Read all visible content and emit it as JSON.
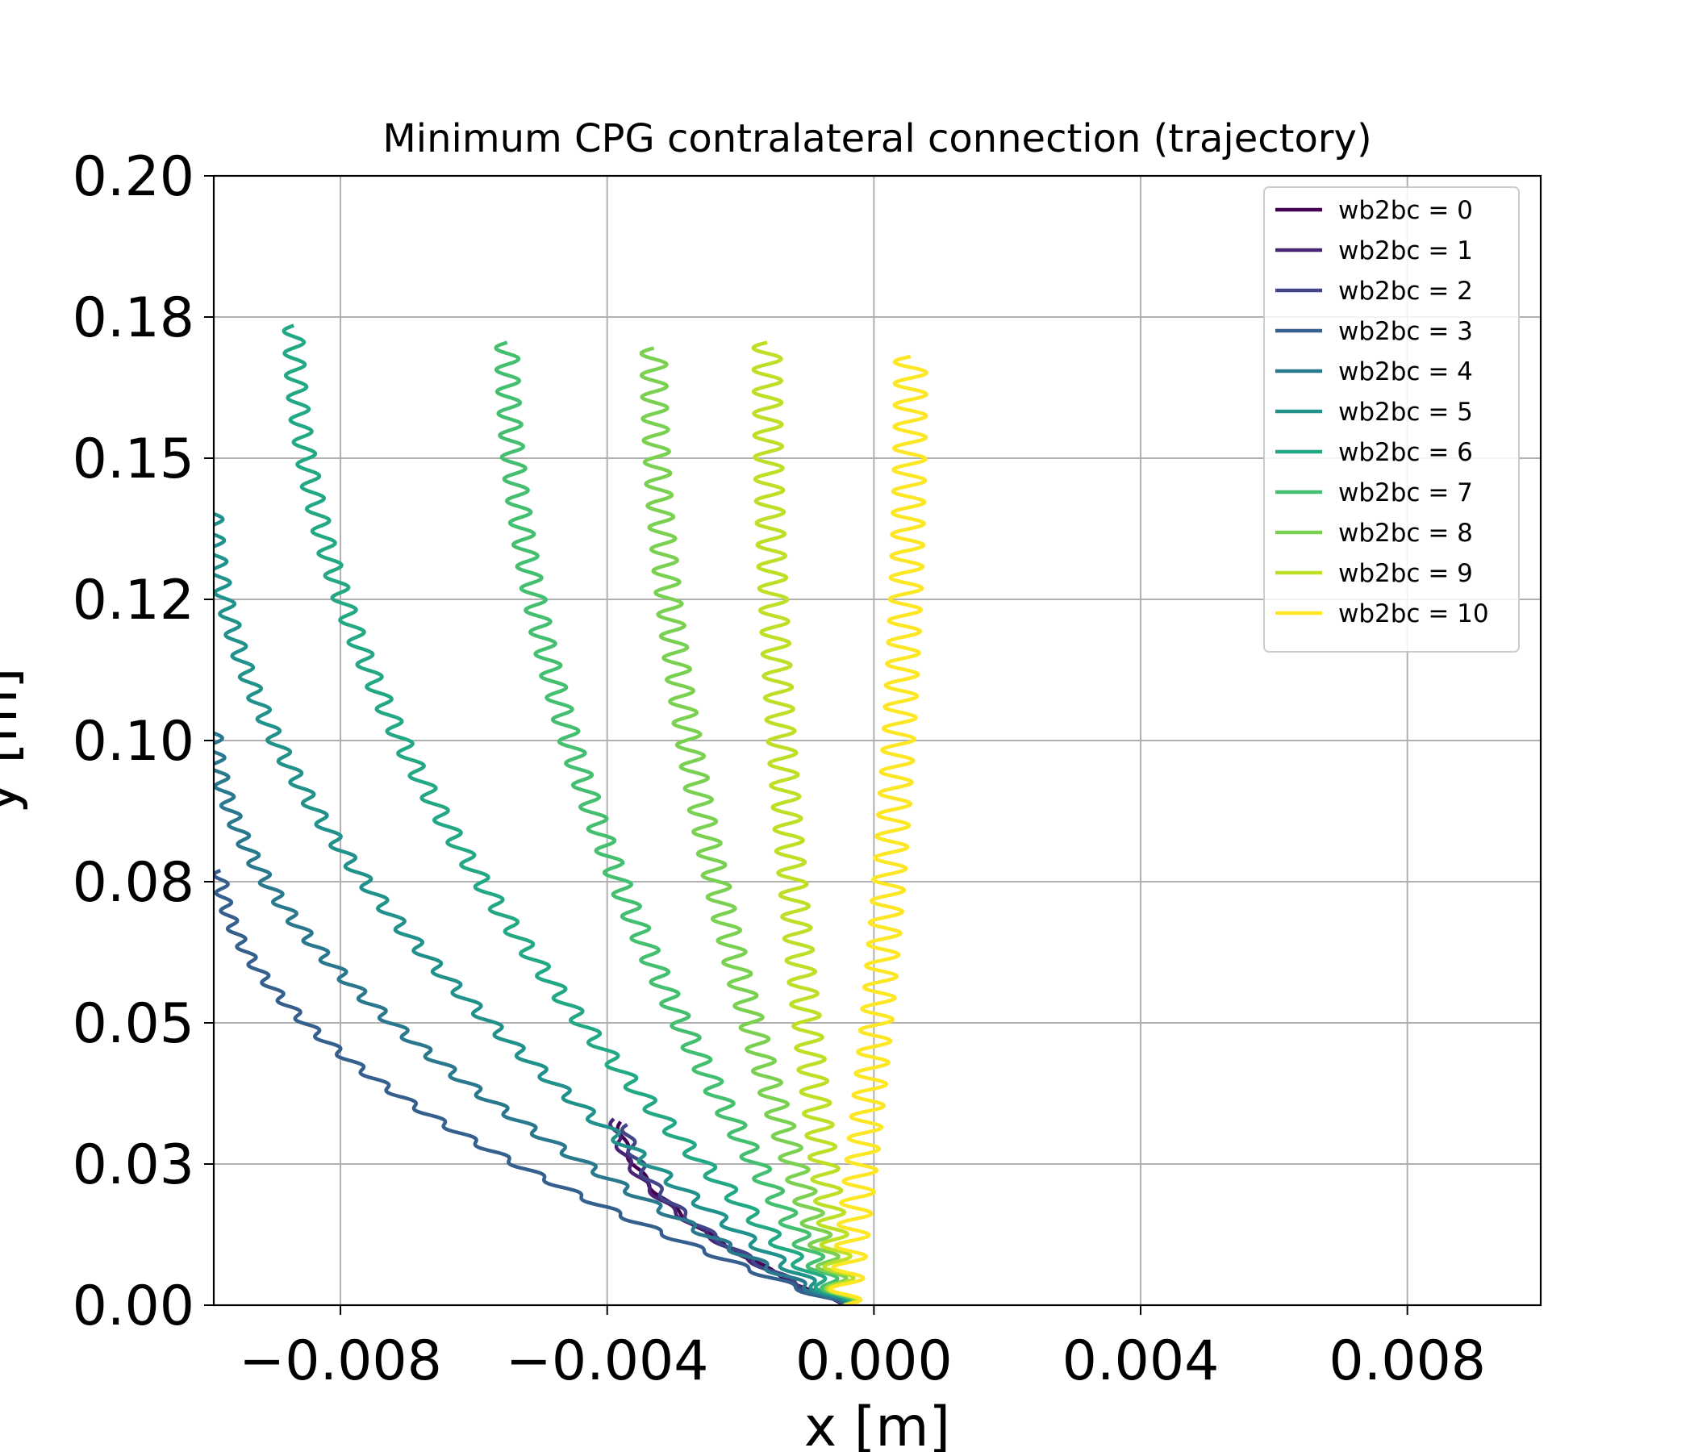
{
  "chart_data": {
    "type": "line",
    "title": "Minimum CPG contralateral connection (trajectory)",
    "xlabel": "x [m]",
    "ylabel": "y [m]",
    "xlim": [
      -0.0099,
      0.01
    ],
    "ylim": [
      0,
      0.2
    ],
    "xticks": [
      -0.008,
      -0.004,
      0.0,
      0.004,
      0.008
    ],
    "xtick_labels": [
      "−0.008",
      "−0.004",
      "0.000",
      "0.004",
      "0.008"
    ],
    "yticks": [
      0.0,
      0.025,
      0.05,
      0.075,
      0.1,
      0.125,
      0.15,
      0.175,
      0.2
    ],
    "ytick_labels": [
      "0.00",
      "0.03",
      "0.05",
      "0.08",
      "0.10",
      "0.12",
      "0.15",
      "0.18",
      "0.20"
    ],
    "grid": true,
    "legend_position": "top-right",
    "series": [
      {
        "name": "wb2bc = 0",
        "color": "#440154",
        "amp": 5e-05,
        "cycles": 6,
        "end": [
          -0.0038,
          0.0325
        ]
      },
      {
        "name": "wb2bc = 1",
        "color": "#482475",
        "amp": 6e-05,
        "cycles": 8,
        "end": [
          -0.0039,
          0.033
        ]
      },
      {
        "name": "wb2bc = 2",
        "color": "#414487",
        "amp": 8e-05,
        "cycles": 8,
        "end": [
          -0.0037,
          0.032
        ]
      },
      {
        "name": "wb2bc = 3",
        "color": "#355f8d",
        "amp": 0.0001,
        "cycles": 24,
        "end": [
          -0.0098,
          0.077
        ]
      },
      {
        "name": "wb2bc = 4",
        "color": "#2a788e",
        "amp": 0.00012,
        "cycles": 30,
        "end": [
          -0.0099,
          0.103
        ]
      },
      {
        "name": "wb2bc = 5",
        "color": "#21918c",
        "amp": 0.00013,
        "cycles": 38,
        "end": [
          -0.0099,
          0.142
        ]
      },
      {
        "name": "wb2bc = 6",
        "color": "#22a884",
        "amp": 0.00015,
        "cycles": 44,
        "end": [
          -0.0087,
          0.1735
        ]
      },
      {
        "name": "wb2bc = 7",
        "color": "#44bf70",
        "amp": 0.00017,
        "cycles": 44,
        "end": [
          -0.0055,
          0.1705
        ]
      },
      {
        "name": "wb2bc = 8",
        "color": "#7ad151",
        "amp": 0.00019,
        "cycles": 44,
        "end": [
          -0.0033,
          0.1695
        ]
      },
      {
        "name": "wb2bc = 9",
        "color": "#bddf26",
        "amp": 0.00021,
        "cycles": 44,
        "end": [
          -0.0016,
          0.1705
        ]
      },
      {
        "name": "wb2bc = 10",
        "color": "#fde725",
        "amp": 0.00024,
        "cycles": 44,
        "end": [
          0.00055,
          0.168
        ]
      }
    ],
    "origin": [
      -0.00045,
      0.0
    ]
  }
}
